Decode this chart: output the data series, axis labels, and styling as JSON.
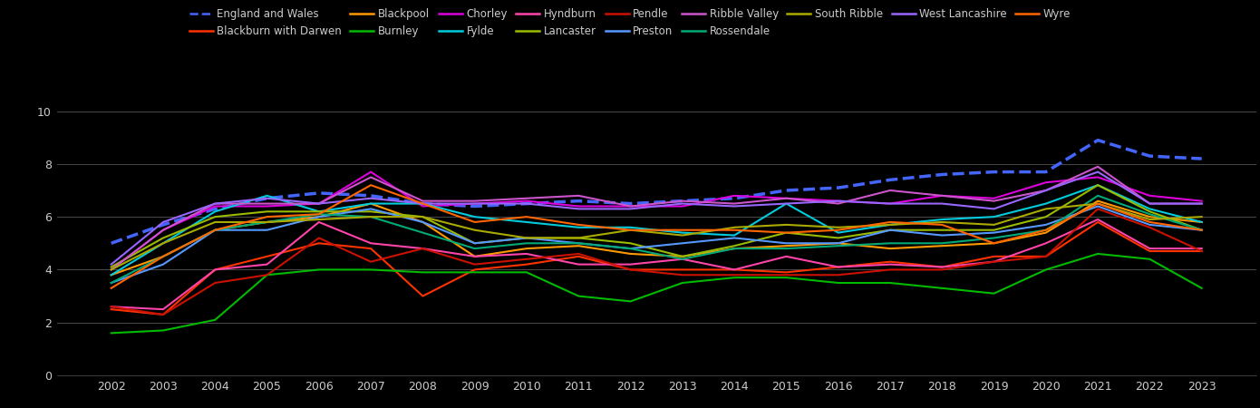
{
  "years": [
    2002,
    2003,
    2004,
    2005,
    2006,
    2007,
    2008,
    2009,
    2010,
    2011,
    2012,
    2013,
    2014,
    2015,
    2016,
    2017,
    2018,
    2019,
    2020,
    2021,
    2022,
    2023
  ],
  "series": {
    "England and Wales": {
      "color": "#4466ff",
      "linestyle": "--",
      "linewidth": 2.5,
      "values": [
        5.0,
        5.7,
        6.3,
        6.7,
        6.9,
        6.8,
        6.5,
        6.4,
        6.5,
        6.6,
        6.5,
        6.6,
        6.7,
        7.0,
        7.1,
        7.4,
        7.6,
        7.7,
        7.7,
        8.9,
        8.3,
        8.2
      ]
    },
    "Blackburn with Darwen": {
      "color": "#ff3300",
      "linestyle": "-",
      "linewidth": 1.5,
      "values": [
        2.5,
        2.3,
        4.0,
        4.5,
        5.0,
        4.8,
        3.0,
        4.0,
        4.2,
        4.5,
        4.0,
        4.0,
        4.0,
        3.9,
        4.1,
        4.3,
        4.1,
        4.5,
        4.5,
        5.8,
        4.7,
        4.7
      ]
    },
    "Blackpool": {
      "color": "#ff9900",
      "linestyle": "-",
      "linewidth": 1.5,
      "values": [
        3.8,
        4.5,
        5.5,
        5.8,
        6.0,
        6.5,
        5.8,
        4.5,
        4.8,
        4.9,
        4.6,
        4.5,
        4.8,
        4.9,
        5.0,
        4.8,
        4.9,
        5.0,
        5.4,
        6.6,
        6.0,
        5.8
      ]
    },
    "Burnley": {
      "color": "#00bb00",
      "linestyle": "-",
      "linewidth": 1.5,
      "values": [
        1.6,
        1.7,
        2.1,
        3.8,
        4.0,
        4.0,
        3.9,
        3.9,
        3.9,
        3.0,
        2.8,
        3.5,
        3.7,
        3.7,
        3.5,
        3.5,
        3.3,
        3.1,
        4.0,
        4.6,
        4.4,
        3.3
      ]
    },
    "Chorley": {
      "color": "#dd00dd",
      "linestyle": "-",
      "linewidth": 1.5,
      "values": [
        4.0,
        5.5,
        6.4,
        6.4,
        6.5,
        7.7,
        6.4,
        6.5,
        6.6,
        6.4,
        6.4,
        6.4,
        6.8,
        6.7,
        6.6,
        6.5,
        6.8,
        6.7,
        7.3,
        7.5,
        6.8,
        6.6
      ]
    },
    "Fylde": {
      "color": "#00ccdd",
      "linestyle": "-",
      "linewidth": 1.5,
      "values": [
        3.8,
        5.0,
        6.2,
        6.8,
        6.2,
        6.5,
        6.5,
        6.0,
        5.8,
        5.6,
        5.6,
        5.4,
        5.3,
        6.5,
        5.4,
        5.7,
        5.9,
        6.0,
        6.5,
        7.2,
        6.3,
        5.8
      ]
    },
    "Hyndburn": {
      "color": "#ff44aa",
      "linestyle": "-",
      "linewidth": 1.5,
      "values": [
        2.6,
        2.5,
        4.0,
        4.2,
        5.8,
        5.0,
        4.8,
        4.5,
        4.6,
        4.2,
        4.2,
        4.4,
        4.0,
        4.5,
        4.1,
        4.2,
        4.1,
        4.3,
        5.0,
        5.9,
        4.8,
        4.8
      ]
    },
    "Lancaster": {
      "color": "#99bb00",
      "linestyle": "-",
      "linewidth": 1.5,
      "values": [
        4.1,
        5.2,
        6.0,
        6.2,
        6.2,
        6.2,
        6.0,
        5.0,
        5.2,
        5.2,
        5.0,
        4.5,
        4.9,
        5.4,
        5.2,
        5.5,
        5.5,
        5.5,
        6.0,
        7.2,
        6.2,
        5.5
      ]
    },
    "Pendle": {
      "color": "#cc1100",
      "linestyle": "-",
      "linewidth": 1.5,
      "values": [
        2.6,
        2.3,
        3.5,
        3.8,
        5.2,
        4.3,
        4.8,
        4.2,
        4.4,
        4.6,
        4.0,
        3.8,
        3.8,
        3.8,
        3.8,
        4.0,
        4.0,
        4.3,
        4.5,
        6.3,
        5.6,
        4.7
      ]
    },
    "Preston": {
      "color": "#5599ff",
      "linestyle": "-",
      "linewidth": 1.5,
      "values": [
        3.5,
        4.2,
        5.5,
        5.5,
        6.0,
        6.3,
        5.8,
        5.0,
        5.2,
        5.0,
        4.8,
        5.0,
        5.2,
        5.0,
        5.0,
        5.5,
        5.3,
        5.4,
        5.7,
        6.4,
        5.7,
        5.5
      ]
    },
    "Ribble Valley": {
      "color": "#cc55cc",
      "linestyle": "-",
      "linewidth": 1.5,
      "values": [
        4.0,
        5.5,
        6.5,
        6.5,
        6.5,
        7.5,
        6.6,
        6.6,
        6.7,
        6.8,
        6.4,
        6.6,
        6.5,
        6.7,
        6.5,
        7.0,
        6.8,
        6.6,
        7.0,
        7.9,
        6.5,
        6.5
      ]
    },
    "Rossendale": {
      "color": "#00aa77",
      "linestyle": "-",
      "linewidth": 1.5,
      "values": [
        3.5,
        4.5,
        5.5,
        5.8,
        6.1,
        6.0,
        5.4,
        4.8,
        5.0,
        5.0,
        4.8,
        4.4,
        4.8,
        4.8,
        4.9,
        5.0,
        5.0,
        5.2,
        5.5,
        6.8,
        6.1,
        5.5
      ]
    },
    "South Ribble": {
      "color": "#aaaa00",
      "linestyle": "-",
      "linewidth": 1.5,
      "values": [
        4.0,
        5.0,
        5.8,
        5.8,
        5.9,
        6.0,
        6.0,
        5.5,
        5.2,
        5.2,
        5.5,
        5.3,
        5.6,
        5.7,
        5.6,
        5.7,
        5.8,
        5.7,
        6.3,
        6.5,
        5.9,
        6.0
      ]
    },
    "West Lancashire": {
      "color": "#9966ff",
      "linestyle": "-",
      "linewidth": 1.5,
      "values": [
        4.2,
        5.8,
        6.5,
        6.7,
        6.5,
        6.7,
        6.5,
        6.5,
        6.5,
        6.3,
        6.3,
        6.5,
        6.4,
        6.5,
        6.6,
        6.5,
        6.5,
        6.3,
        7.0,
        7.7,
        6.5,
        6.5
      ]
    },
    "Wyre": {
      "color": "#ff6600",
      "linestyle": "-",
      "linewidth": 1.5,
      "values": [
        3.3,
        4.5,
        5.5,
        6.0,
        6.1,
        7.2,
        6.5,
        5.8,
        6.0,
        5.7,
        5.5,
        5.5,
        5.5,
        5.4,
        5.5,
        5.8,
        5.7,
        5.0,
        5.5,
        6.5,
        5.8,
        5.5
      ]
    }
  },
  "legend_row1": [
    "England and Wales",
    "Blackburn with Darwen",
    "Blackpool",
    "Burnley",
    "Chorley",
    "Fylde",
    "Hyndburn",
    "Lancaster",
    "Pendle"
  ],
  "legend_row2": [
    "Preston",
    "Ribble Valley",
    "Rossendale",
    "South Ribble",
    "West Lancashire",
    "Wyre"
  ],
  "ylim": [
    0,
    10.5
  ],
  "yticks": [
    0,
    2,
    4,
    6,
    8,
    10
  ],
  "background_color": "#000000",
  "text_color": "#cccccc",
  "grid_color": "#555555"
}
